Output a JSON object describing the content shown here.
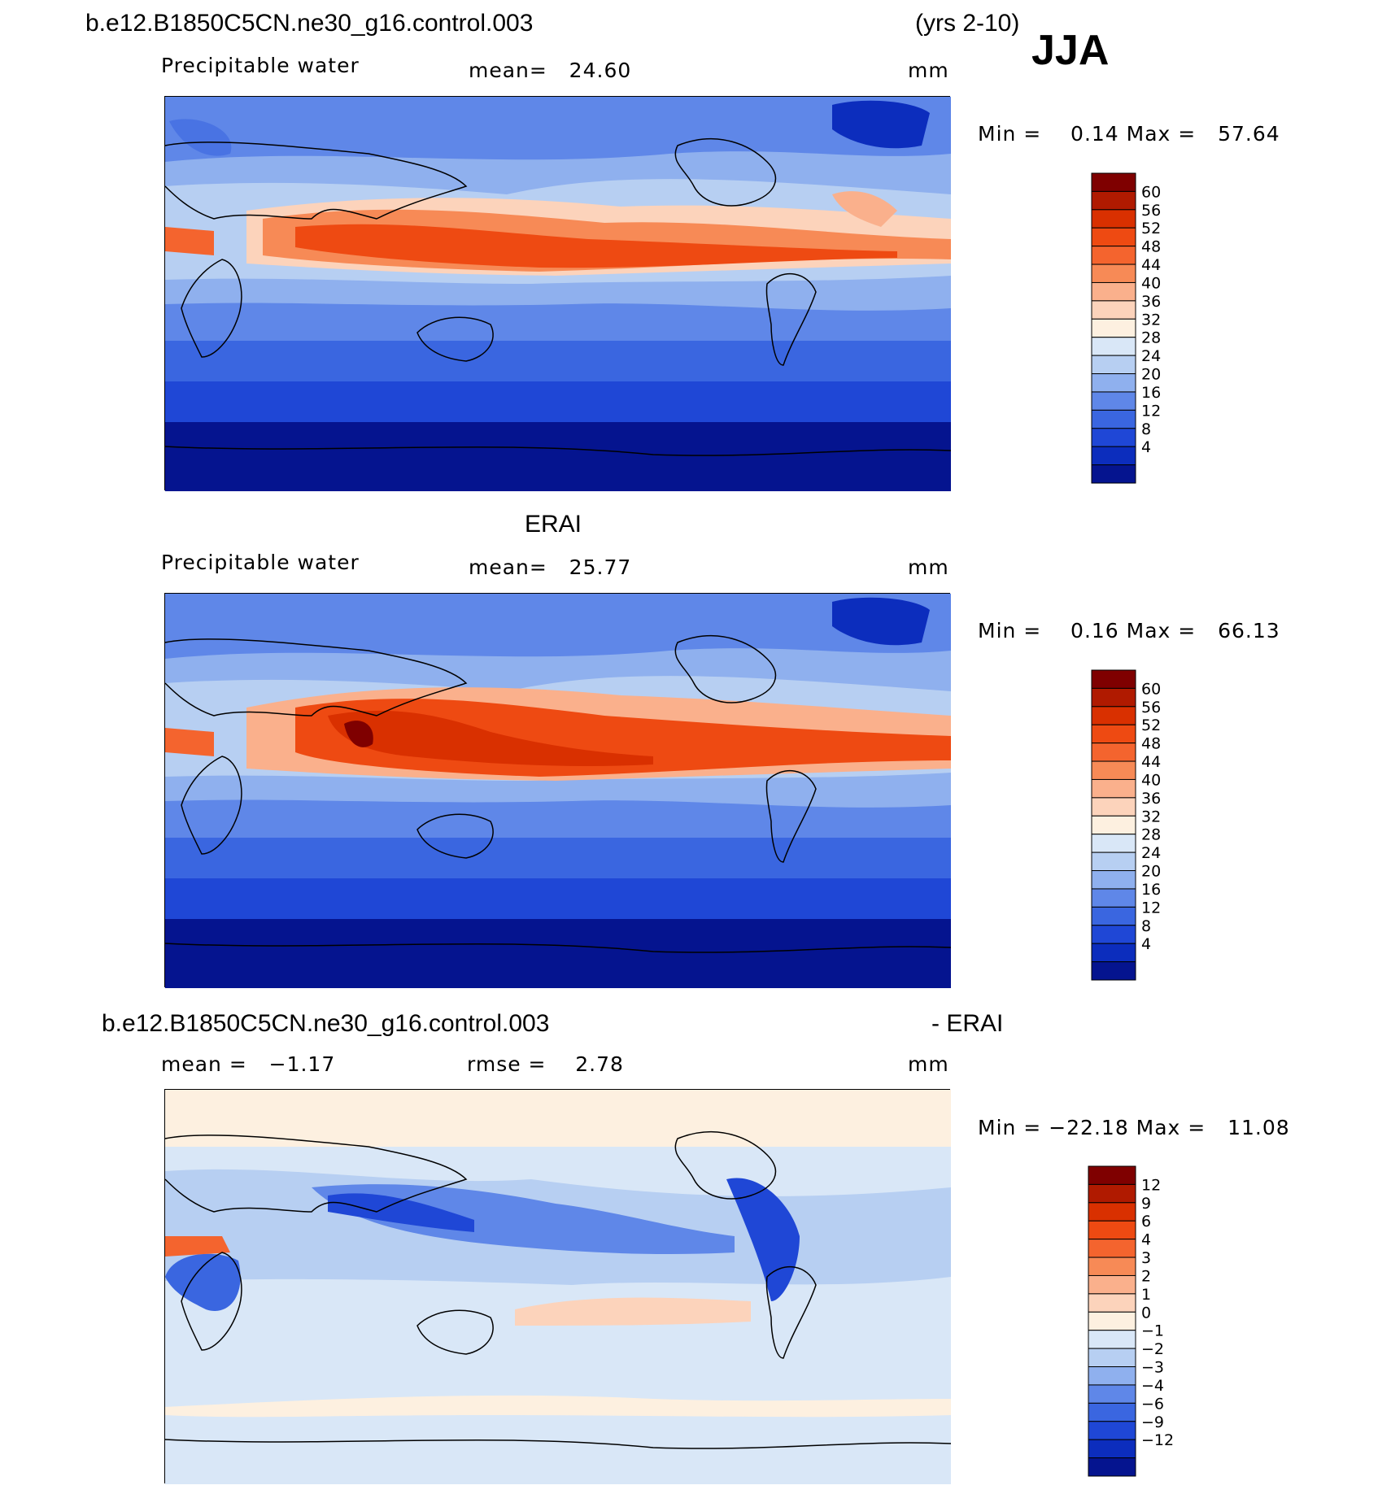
{
  "header": {
    "case_name": "b.e12.B1850C5CN.ne30_g16.control.003",
    "years": "(yrs 2-10)",
    "season": "JJA"
  },
  "panels": [
    {
      "id": "model",
      "left_label": "Precipitable water",
      "center_label": "mean=   24.60",
      "units": "mm",
      "minmax": "Min =    0.14 Max =   57.64"
    },
    {
      "id": "obs",
      "title": "ERAI",
      "left_label": "Precipitable water",
      "center_label": "mean=   25.77",
      "units": "mm",
      "minmax": "Min =    0.16 Max =   66.13"
    },
    {
      "id": "diff",
      "title_left": "b.e12.B1850C5CN.ne30_g16.control.003",
      "title_right": "- ERAI",
      "left_label": "mean =   −1.17",
      "center_label": "rmse =    2.78",
      "units": "mm",
      "minmax": "Min = −22.18 Max =   11.08"
    }
  ],
  "colorbars": {
    "abs_levels": [
      "60",
      "56",
      "52",
      "48",
      "44",
      "40",
      "36",
      "32",
      "28",
      "24",
      "20",
      "16",
      "12",
      "8",
      "4"
    ],
    "abs_colors": [
      "#7f0000",
      "#b01a00",
      "#d93000",
      "#ee4a12",
      "#f4642e",
      "#f78a56",
      "#fab08c",
      "#fcd3bb",
      "#fdf0e0",
      "#d9e7f7",
      "#b7cff2",
      "#8fb0ee",
      "#5f87e8",
      "#3a66e0",
      "#1f47d6",
      "#0c2dbd",
      "#05148f"
    ],
    "diff_levels": [
      "12",
      "9",
      "6",
      "4",
      "3",
      "2",
      "1",
      "0",
      "−1",
      "−2",
      "−3",
      "−4",
      "−6",
      "−9",
      "−12"
    ],
    "diff_colors": [
      "#7f0000",
      "#b01a00",
      "#d93000",
      "#ee4a12",
      "#f4642e",
      "#f78a56",
      "#fab08c",
      "#fcd3bb",
      "#fdf0e0",
      "#d9e7f7",
      "#b7cff2",
      "#8fb0ee",
      "#5f87e8",
      "#3a66e0",
      "#1f47d6",
      "#0c2dbd",
      "#05148f"
    ]
  }
}
